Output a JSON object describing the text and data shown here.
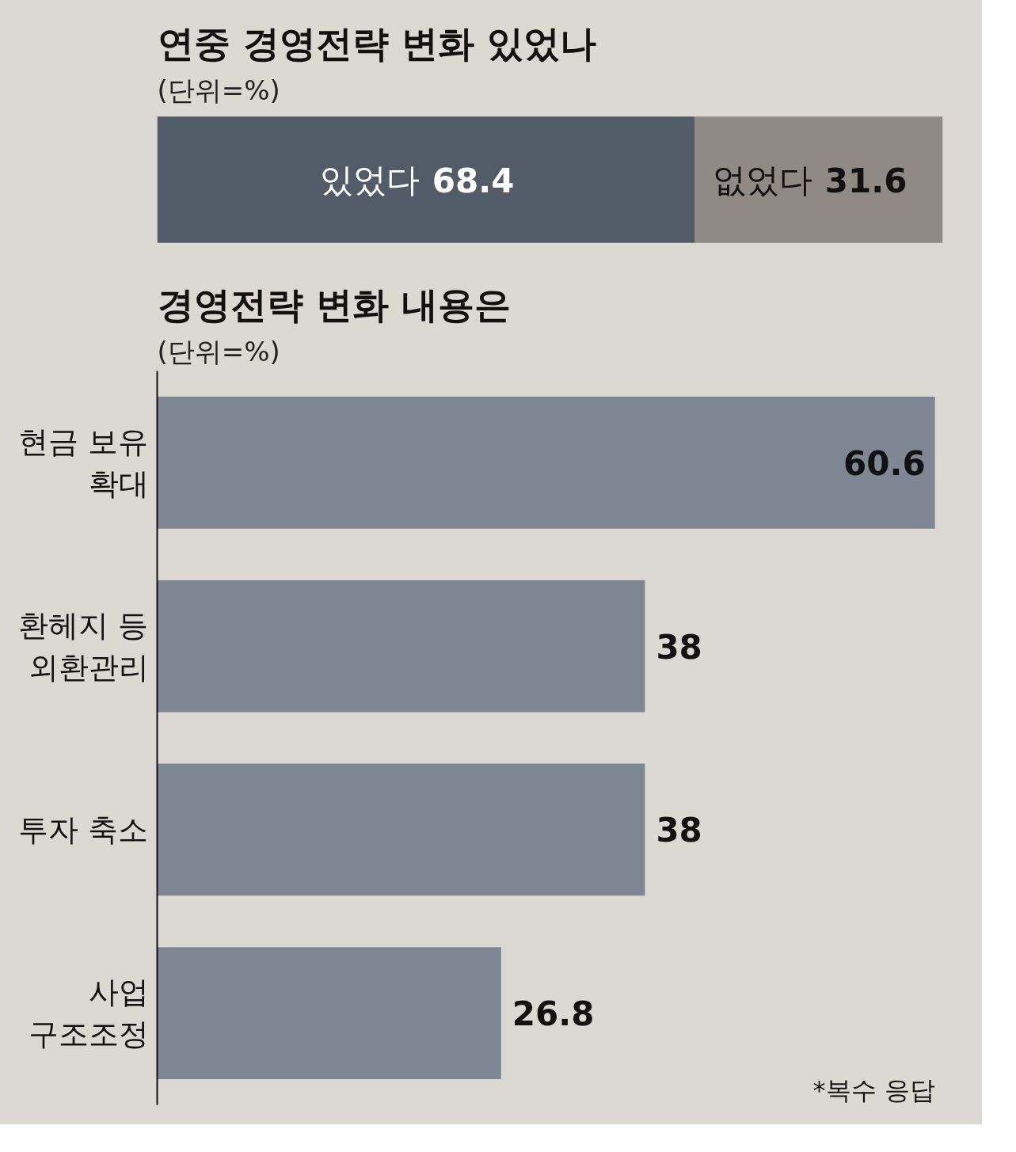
{
  "chart_data": [
    {
      "type": "bar",
      "title": "연중 경영전략 변화 있었나",
      "subtitle": "(단위=%)",
      "orientation": "horizontal",
      "stacked": true,
      "categories": [
        null
      ],
      "series": [
        {
          "name": "있었다",
          "color": "#525c68",
          "values": [
            68.4
          ]
        },
        {
          "name": "없었다",
          "color": "#8f8a84",
          "values": [
            31.6
          ]
        }
      ],
      "tick_labels": false,
      "data_labels": true,
      "grid": false
    },
    {
      "type": "bar",
      "title": "경영전략 변화 내용은",
      "subtitle": "(단위=%)",
      "orientation": "horizontal",
      "categories": [
        "현금 보유\n확대",
        "환헤지 등\n외환관리",
        "투자 축소",
        "사업\n구조조정"
      ],
      "values": [
        60.6,
        38,
        38,
        26.8
      ],
      "color": "#7f8794",
      "tick_labels": "y",
      "data_labels": true,
      "grid": false,
      "annotations": [
        "*복수 응답"
      ]
    }
  ]
}
